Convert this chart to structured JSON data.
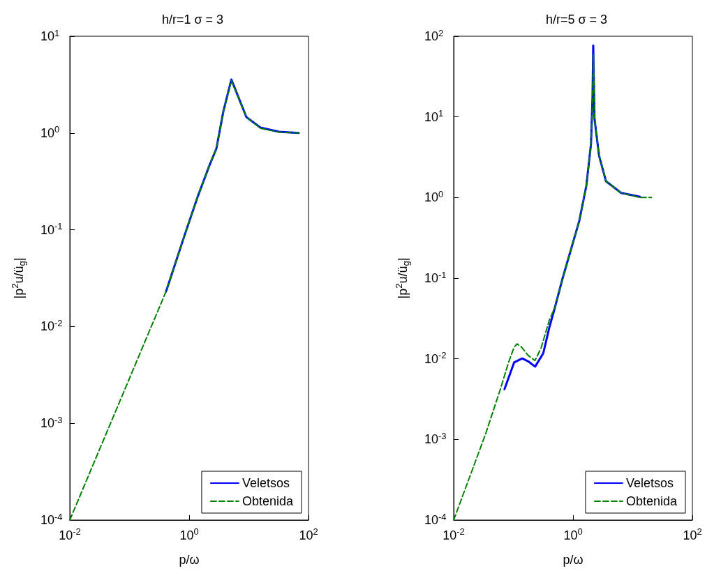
{
  "chart_data": [
    {
      "type": "line",
      "title": "h/r=1 σ = 3",
      "xlabel": "p/ω",
      "ylabel": "|p$^{2}$u/ü$_{g}$|",
      "log": "xy",
      "legend": "bottom right",
      "marker": "none",
      "grid": false,
      "xlim": [
        0.01,
        100
      ],
      "ylim": [
        0.0001,
        10
      ],
      "xticks": [
        {
          "value": 0.01,
          "label": "10$^{-2}$"
        },
        {
          "value": 1,
          "label": "10$^{0}$"
        },
        {
          "value": 100,
          "label": "10$^{2}$"
        }
      ],
      "yticks": [
        {
          "value": 0.0001,
          "label": "10$^{-4}$"
        },
        {
          "value": 0.001,
          "label": "10$^{-3}$"
        },
        {
          "value": 0.01,
          "label": "10$^{-2}$"
        },
        {
          "value": 0.1,
          "label": "10$^{-1}$"
        },
        {
          "value": 1,
          "label": "10$^{0}$"
        },
        {
          "value": 10,
          "label": "10$^{1}$"
        }
      ],
      "series": [
        {
          "name": "Veletsos",
          "color": "#0000ff",
          "line_style": "solid",
          "x": [
            0.41,
            0.9,
            1.38,
            2.18,
            2.86,
            3.74,
            5.1,
            9.1,
            15.6,
            32,
            68.6
          ],
          "values": [
            0.023,
            0.1,
            0.217,
            0.46,
            0.69,
            1.67,
            3.57,
            1.46,
            1.14,
            1.03,
            1.0
          ]
        },
        {
          "name": "Obtenida",
          "color": "#008000",
          "line_style": "dashed",
          "x": [
            0.01,
            0.41,
            0.9,
            1.38,
            2.18,
            2.86,
            3.74,
            5.1,
            9.1,
            15.6,
            32,
            68.6
          ],
          "values": [
            0.0001,
            0.023,
            0.1,
            0.217,
            0.46,
            0.69,
            1.67,
            3.5,
            1.46,
            1.12,
            1.02,
            1.0
          ]
        }
      ]
    },
    {
      "type": "line",
      "title": "h/r=5 σ = 3",
      "xlabel": "p/ω",
      "ylabel": "|p$^{2}$u/ü$_{g}$|",
      "log": "xy",
      "legend": "bottom right",
      "marker": "none",
      "grid": false,
      "xlim": [
        0.01,
        100
      ],
      "ylim": [
        0.0001,
        100
      ],
      "xticks": [
        {
          "value": 0.01,
          "label": "10$^{-2}$"
        },
        {
          "value": 1,
          "label": "10$^{0}$"
        },
        {
          "value": 100,
          "label": "10$^{2}$"
        }
      ],
      "yticks": [
        {
          "value": 0.0001,
          "label": "10$^{-4}$"
        },
        {
          "value": 0.001,
          "label": "10$^{-3}$"
        },
        {
          "value": 0.01,
          "label": "10$^{-2}$"
        },
        {
          "value": 0.1,
          "label": "10$^{-1}$"
        },
        {
          "value": 1,
          "label": "10$^{0}$"
        },
        {
          "value": 10,
          "label": "10$^{1}$"
        },
        {
          "value": 100,
          "label": "10$^{2}$"
        }
      ],
      "series": [
        {
          "name": "Veletsos",
          "color": "#0000ff",
          "line_style": "solid",
          "x": [
            0.071,
            0.103,
            0.141,
            0.177,
            0.232,
            0.317,
            0.4,
            0.5,
            0.67,
            1.27,
            1.67,
            2.0,
            2.12,
            2.18,
            2.29,
            2.73,
            3.57,
            6.4,
            13.2
          ],
          "values": [
            0.0042,
            0.009,
            0.0101,
            0.0093,
            0.008,
            0.0117,
            0.0243,
            0.044,
            0.1,
            0.51,
            1.39,
            4.6,
            17.3,
            77,
            9.5,
            3.3,
            1.59,
            1.14,
            1.02
          ]
        },
        {
          "name": "Obtenida",
          "color": "#008000",
          "line_style": "dashed",
          "x": [
            0.01,
            0.034,
            0.06,
            0.083,
            0.103,
            0.115,
            0.134,
            0.177,
            0.23,
            0.29,
            0.4,
            0.5,
            0.67,
            1.27,
            1.67,
            2.0,
            2.12,
            2.2,
            2.29,
            2.73,
            3.57,
            6.4,
            13.2,
            20.6
          ],
          "values": [
            0.0001,
            0.00115,
            0.0041,
            0.009,
            0.0139,
            0.0153,
            0.0142,
            0.011,
            0.0095,
            0.0134,
            0.03,
            0.044,
            0.1,
            0.51,
            1.39,
            4.6,
            17.3,
            60,
            9.5,
            3.3,
            1.59,
            1.14,
            1.0,
            1.0
          ]
        }
      ]
    }
  ]
}
